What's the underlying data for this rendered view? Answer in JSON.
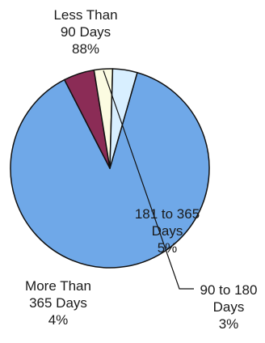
{
  "chart_data": {
    "type": "pie",
    "start_angle_deg": 16,
    "slices": [
      {
        "label_lines": [
          "Less Than",
          "90 Days",
          "88%"
        ],
        "label": "Less Than 90 Days",
        "value": 88,
        "percent_label": "88%",
        "color": "#6fa8e8"
      },
      {
        "label_lines": [
          "181 to 365",
          "Days",
          "5%"
        ],
        "label": "181 to 365 Days",
        "value": 5,
        "percent_label": "5%",
        "color": "#8b2c56"
      },
      {
        "label_lines": [
          "90 to 180",
          "Days",
          "3%"
        ],
        "label": "90 to 180 Days",
        "value": 3,
        "percent_label": "3%",
        "color": "#fbfbe1"
      },
      {
        "label_lines": [
          "More Than",
          "365 Days",
          "4%"
        ],
        "label": "More Than 365 Days",
        "value": 4,
        "percent_label": "4%",
        "color": "#d8efff"
      }
    ]
  }
}
